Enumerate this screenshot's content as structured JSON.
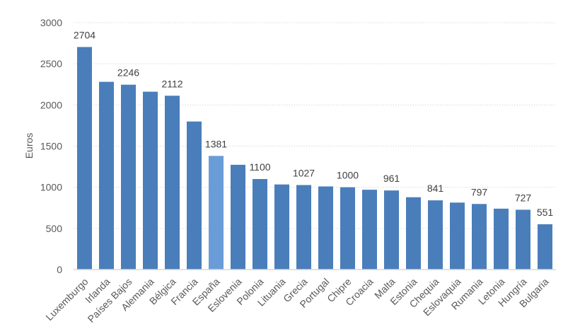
{
  "chart_data": {
    "type": "bar",
    "title": "",
    "xlabel": "",
    "ylabel": "Euros",
    "ylim": [
      0,
      3000
    ],
    "yticks": [
      0,
      500,
      1000,
      1500,
      2000,
      2500,
      3000
    ],
    "grid": true,
    "legend": null,
    "categories": [
      "Luxemburgo",
      "Irlanda",
      "Países Bajos",
      "Alemania",
      "Bélgica",
      "Francia",
      "España",
      "Eslovenia",
      "Polonia",
      "Lituania",
      "Grecia",
      "Portugal",
      "Chipre",
      "Croacia",
      "Malta",
      "Estonia",
      "Chequia",
      "Eslovaquia",
      "Rumania",
      "Letonia",
      "Hungría",
      "Bulgaria"
    ],
    "values": [
      2704,
      2281,
      2246,
      2161,
      2112,
      1799,
      1381,
      1273,
      1100,
      1034,
      1027,
      1010,
      1000,
      970,
      961,
      879,
      841,
      814,
      797,
      740,
      727,
      551
    ],
    "data_labels": [
      {
        "category": "Luxemburgo",
        "label": "2704"
      },
      {
        "category": "Países Bajos",
        "label": "2246"
      },
      {
        "category": "Bélgica",
        "label": "2112"
      },
      {
        "category": "España",
        "label": "1381"
      },
      {
        "category": "Polonia",
        "label": "1100"
      },
      {
        "category": "Grecia",
        "label": "1027"
      },
      {
        "category": "Chipre",
        "label": "1000"
      },
      {
        "category": "Malta",
        "label": "961"
      },
      {
        "category": "Chequia",
        "label": "841"
      },
      {
        "category": "Rumania",
        "label": "797"
      },
      {
        "category": "Hungría",
        "label": "727"
      },
      {
        "category": "Bulgaria",
        "label": "551"
      }
    ],
    "highlight": "España",
    "colors": {
      "bar": "#4a7ebb",
      "highlight": "#6a9cd8",
      "grid": "#d9d9d9",
      "text": "#595959"
    }
  }
}
